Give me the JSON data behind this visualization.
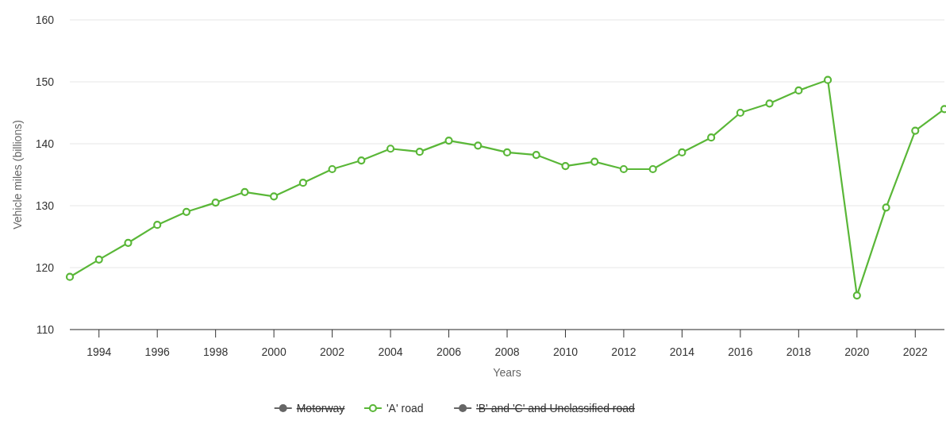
{
  "chart_data": {
    "type": "line",
    "xlabel": "Years",
    "ylabel": "Vehicle miles (billions)",
    "x": [
      1993,
      1994,
      1995,
      1996,
      1997,
      1998,
      1999,
      2000,
      2001,
      2002,
      2003,
      2004,
      2005,
      2006,
      2007,
      2008,
      2009,
      2010,
      2011,
      2012,
      2013,
      2014,
      2015,
      2016,
      2017,
      2018,
      2019,
      2020,
      2021,
      2022,
      2023
    ],
    "series": [
      {
        "name": "Motorway",
        "color": "#666666",
        "values": [
          null,
          null,
          null,
          null,
          null,
          null,
          null,
          null,
          null,
          null,
          null,
          null,
          null,
          null,
          null,
          null,
          null,
          null,
          null,
          null,
          null,
          null,
          null,
          null,
          null,
          null,
          null,
          null,
          null,
          null,
          null
        ]
      },
      {
        "name": "'A' road",
        "color": "#5ab738",
        "values": [
          118.5,
          121.3,
          124.0,
          126.9,
          129.0,
          130.5,
          132.2,
          131.5,
          133.7,
          135.9,
          137.3,
          139.2,
          138.7,
          140.5,
          139.7,
          138.6,
          138.2,
          136.4,
          137.1,
          135.9,
          135.9,
          138.6,
          141.0,
          145.0,
          146.5,
          148.6,
          150.3,
          115.5,
          129.7,
          142.1,
          145.6
        ]
      },
      {
        "name": "'B' and 'C' and Unclassified road",
        "color": "#666666",
        "values": [
          null,
          null,
          null,
          null,
          null,
          null,
          null,
          null,
          null,
          null,
          null,
          null,
          null,
          null,
          null,
          null,
          null,
          null,
          null,
          null,
          null,
          null,
          null,
          null,
          null,
          null,
          null,
          null,
          null,
          null,
          null
        ]
      }
    ],
    "xlim": [
      1993,
      2023
    ],
    "xticks": [
      1994,
      1996,
      1998,
      2000,
      2002,
      2004,
      2006,
      2008,
      2010,
      2012,
      2014,
      2016,
      2018,
      2020,
      2022
    ],
    "ylim": [
      110,
      160
    ],
    "yticks": [
      110,
      120,
      130,
      140,
      150,
      160
    ],
    "grid": "y",
    "legend": "bottom",
    "marker": "circle",
    "line_style": "solid"
  }
}
